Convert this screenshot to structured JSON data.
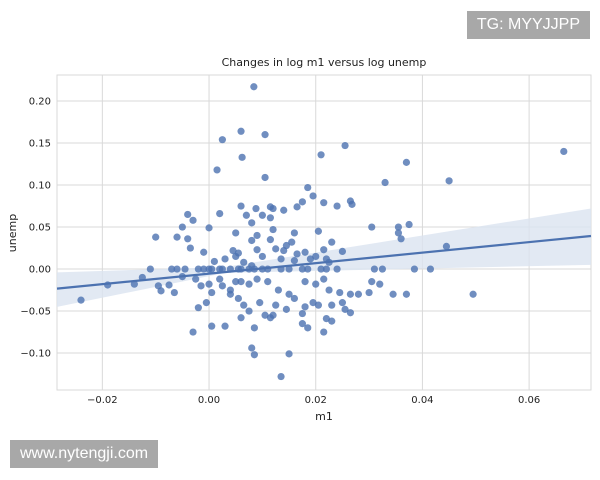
{
  "watermarks": {
    "top": "TG: MYYJJPP",
    "bottom": "www.nytengji.com"
  },
  "chart_data": {
    "type": "scatter",
    "title": "Changes in log m1 versus log unemp",
    "xlabel": "m1",
    "ylabel": "unemp",
    "xlim": [
      -0.0285,
      0.0716
    ],
    "ylim": [
      -0.144,
      0.231
    ],
    "xticks": [
      -0.02,
      0.0,
      0.02,
      0.04,
      0.06
    ],
    "xtick_labels": [
      "−0.02",
      "0.00",
      "0.02",
      "0.04",
      "0.06"
    ],
    "yticks": [
      -0.1,
      -0.05,
      0.0,
      0.05,
      0.1,
      0.15,
      0.2
    ],
    "ytick_labels": [
      "−0.10",
      "−0.05",
      "0.00",
      "0.05",
      "0.10",
      "0.15",
      "0.20"
    ],
    "grid": true,
    "colors": {
      "points": "#4c72b0",
      "line": "#4c72b0",
      "band": "#dbe4f0",
      "grid": "#d9d9d9"
    },
    "regression": {
      "slope": 0.626,
      "intercept": -0.0055,
      "ci_left": [
        -0.045,
        -0.004
      ],
      "ci_right": [
        0.005,
        0.072
      ]
    },
    "points": [
      [
        0.0084,
        0.217
      ],
      [
        0.0025,
        0.154
      ],
      [
        0.006,
        0.164
      ],
      [
        0.0105,
        0.16
      ],
      [
        0.0062,
        0.133
      ],
      [
        0.0015,
        0.118
      ],
      [
        0.0105,
        0.109
      ],
      [
        0.021,
        0.136
      ],
      [
        0.0255,
        0.147
      ],
      [
        0.037,
        0.127
      ],
      [
        0.045,
        0.105
      ],
      [
        0.0665,
        0.14
      ],
      [
        0.033,
        0.103
      ],
      [
        0.0185,
        0.097
      ],
      [
        0.0195,
        0.087
      ],
      [
        0.0175,
        0.08
      ],
      [
        0.0215,
        0.079
      ],
      [
        0.024,
        0.075
      ],
      [
        0.0265,
        0.081
      ],
      [
        0.0268,
        0.077
      ],
      [
        0.012,
        0.072
      ],
      [
        0.014,
        0.07
      ],
      [
        0.0115,
        0.074
      ],
      [
        0.0088,
        0.072
      ],
      [
        0.006,
        0.075
      ],
      [
        0.007,
        0.064
      ],
      [
        0.01,
        0.064
      ],
      [
        0.0115,
        0.061
      ],
      [
        0.002,
        0.066
      ],
      [
        0.0165,
        0.074
      ],
      [
        -0.004,
        0.065
      ],
      [
        -0.003,
        0.058
      ],
      [
        -0.005,
        0.05
      ],
      [
        0.0,
        0.049
      ],
      [
        0.008,
        0.055
      ],
      [
        0.005,
        0.043
      ],
      [
        0.009,
        0.04
      ],
      [
        0.012,
        0.047
      ],
      [
        0.016,
        0.043
      ],
      [
        0.0205,
        0.045
      ],
      [
        0.023,
        0.032
      ],
      [
        0.0155,
        0.032
      ],
      [
        0.0145,
        0.028
      ],
      [
        0.0115,
        0.035
      ],
      [
        0.008,
        0.034
      ],
      [
        0.0045,
        0.022
      ],
      [
        0.0055,
        0.019
      ],
      [
        0.009,
        0.023
      ],
      [
        0.0125,
        0.024
      ],
      [
        0.014,
        0.022
      ],
      [
        0.0165,
        0.018
      ],
      [
        0.018,
        0.02
      ],
      [
        0.0215,
        0.023
      ],
      [
        0.025,
        0.021
      ],
      [
        0.0305,
        0.05
      ],
      [
        0.0355,
        0.05
      ],
      [
        0.0375,
        0.053
      ],
      [
        0.0355,
        0.043
      ],
      [
        0.036,
        0.036
      ],
      [
        0.0445,
        0.027
      ],
      [
        -0.004,
        0.036
      ],
      [
        -0.006,
        0.038
      ],
      [
        -0.01,
        0.038
      ],
      [
        -0.0035,
        0.025
      ],
      [
        -0.001,
        0.02
      ],
      [
        0.001,
        0.009
      ],
      [
        0.003,
        0.012
      ],
      [
        0.005,
        0.015
      ],
      [
        0.01,
        0.015
      ],
      [
        0.0135,
        0.012
      ],
      [
        0.016,
        0.01
      ],
      [
        0.019,
        0.012
      ],
      [
        0.02,
        0.015
      ],
      [
        0.022,
        0.012
      ],
      [
        0.0225,
        0.008
      ],
      [
        0.0065,
        0.008
      ],
      [
        0.008,
        0.004
      ],
      [
        -0.011,
        0.0
      ],
      [
        -0.007,
        0.0
      ],
      [
        -0.006,
        0.0
      ],
      [
        -0.0045,
        0.0
      ],
      [
        -0.002,
        0.0
      ],
      [
        -0.001,
        0.0
      ],
      [
        0.0,
        0.0
      ],
      [
        0.0005,
        0.0
      ],
      [
        0.002,
        0.0
      ],
      [
        0.0025,
        0.0
      ],
      [
        0.004,
        0.0
      ],
      [
        0.0055,
        0.0
      ],
      [
        0.006,
        0.0
      ],
      [
        0.0075,
        0.0
      ],
      [
        0.0085,
        0.0
      ],
      [
        0.01,
        0.0
      ],
      [
        0.011,
        0.0
      ],
      [
        0.0135,
        0.0
      ],
      [
        0.015,
        0.0
      ],
      [
        0.0175,
        0.0
      ],
      [
        0.0185,
        0.0
      ],
      [
        0.021,
        0.0
      ],
      [
        0.022,
        0.0
      ],
      [
        0.024,
        0.0
      ],
      [
        0.031,
        0.0
      ],
      [
        0.0325,
        0.0
      ],
      [
        0.0385,
        0.0
      ],
      [
        0.0415,
        0.0
      ],
      [
        -0.024,
        -0.037
      ],
      [
        -0.019,
        -0.019
      ],
      [
        -0.014,
        -0.018
      ],
      [
        -0.0125,
        -0.01
      ],
      [
        -0.0095,
        -0.02
      ],
      [
        -0.009,
        -0.026
      ],
      [
        -0.0075,
        -0.019
      ],
      [
        -0.0065,
        -0.028
      ],
      [
        -0.005,
        -0.009
      ],
      [
        -0.0025,
        -0.012
      ],
      [
        -0.0015,
        -0.02
      ],
      [
        0.0,
        -0.018
      ],
      [
        0.0005,
        -0.028
      ],
      [
        -0.0005,
        -0.04
      ],
      [
        -0.002,
        -0.046
      ],
      [
        0.002,
        -0.012
      ],
      [
        0.0025,
        -0.02
      ],
      [
        0.004,
        -0.025
      ],
      [
        0.005,
        -0.015
      ],
      [
        0.006,
        -0.015
      ],
      [
        0.0075,
        -0.018
      ],
      [
        0.009,
        -0.012
      ],
      [
        0.011,
        -0.015
      ],
      [
        0.013,
        -0.025
      ],
      [
        0.015,
        -0.03
      ],
      [
        0.016,
        -0.035
      ],
      [
        0.018,
        -0.015
      ],
      [
        0.02,
        -0.018
      ],
      [
        0.0215,
        -0.012
      ],
      [
        0.0225,
        -0.025
      ],
      [
        0.0245,
        -0.028
      ],
      [
        0.025,
        -0.04
      ],
      [
        0.0265,
        -0.03
      ],
      [
        0.028,
        -0.03
      ],
      [
        0.03,
        -0.028
      ],
      [
        0.0305,
        -0.015
      ],
      [
        0.032,
        -0.018
      ],
      [
        0.0345,
        -0.03
      ],
      [
        0.037,
        -0.03
      ],
      [
        0.0495,
        -0.03
      ],
      [
        0.004,
        -0.03
      ],
      [
        0.0055,
        -0.035
      ],
      [
        0.0065,
        -0.043
      ],
      [
        0.0075,
        -0.05
      ],
      [
        0.0095,
        -0.04
      ],
      [
        0.0105,
        -0.055
      ],
      [
        0.012,
        -0.055
      ],
      [
        0.0125,
        -0.043
      ],
      [
        0.0145,
        -0.048
      ],
      [
        0.0175,
        -0.053
      ],
      [
        0.018,
        -0.045
      ],
      [
        0.0195,
        -0.04
      ],
      [
        0.0205,
        -0.043
      ],
      [
        0.023,
        -0.043
      ],
      [
        0.0255,
        -0.048
      ],
      [
        0.0265,
        -0.052
      ],
      [
        0.022,
        -0.059
      ],
      [
        0.006,
        -0.058
      ],
      [
        0.0005,
        -0.068
      ],
      [
        -0.003,
        -0.075
      ],
      [
        0.003,
        -0.068
      ],
      [
        0.0085,
        -0.07
      ],
      [
        0.0175,
        -0.065
      ],
      [
        0.0185,
        -0.07
      ],
      [
        0.0215,
        -0.075
      ],
      [
        0.023,
        -0.062
      ],
      [
        0.0115,
        -0.058
      ],
      [
        0.008,
        -0.094
      ],
      [
        0.0085,
        -0.102
      ],
      [
        0.015,
        -0.101
      ],
      [
        0.0135,
        -0.128
      ]
    ]
  }
}
